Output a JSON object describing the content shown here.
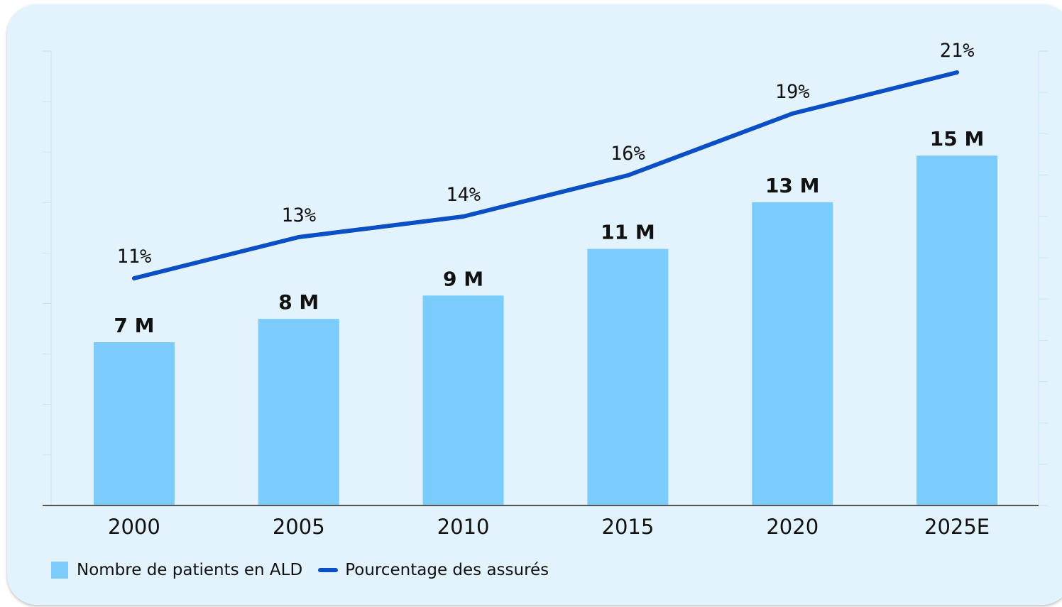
{
  "chart_data": {
    "type": "bar",
    "categories": [
      "2000",
      "2005",
      "2010",
      "2015",
      "2020",
      "2025E"
    ],
    "series": [
      {
        "name": "Nombre de patients en ALD",
        "type": "bar",
        "values": [
          7,
          8,
          9,
          11,
          13,
          15
        ],
        "labels": [
          "7 M",
          "8 M",
          "9 M",
          "11 M",
          "13 M",
          "15 M"
        ],
        "color": "#7bcbfd"
      },
      {
        "name": "Pourcentage des assurés",
        "type": "line",
        "values": [
          11,
          13,
          14,
          16,
          19,
          21
        ],
        "labels": [
          "11%",
          "13%",
          "14%",
          "16%",
          "19%",
          "21%"
        ],
        "color": "#0a4fc3"
      }
    ],
    "ylim_bars": [
      0,
      20
    ],
    "ylim_line": [
      0,
      25
    ],
    "grid": false,
    "legend_position": "bottom-left"
  }
}
